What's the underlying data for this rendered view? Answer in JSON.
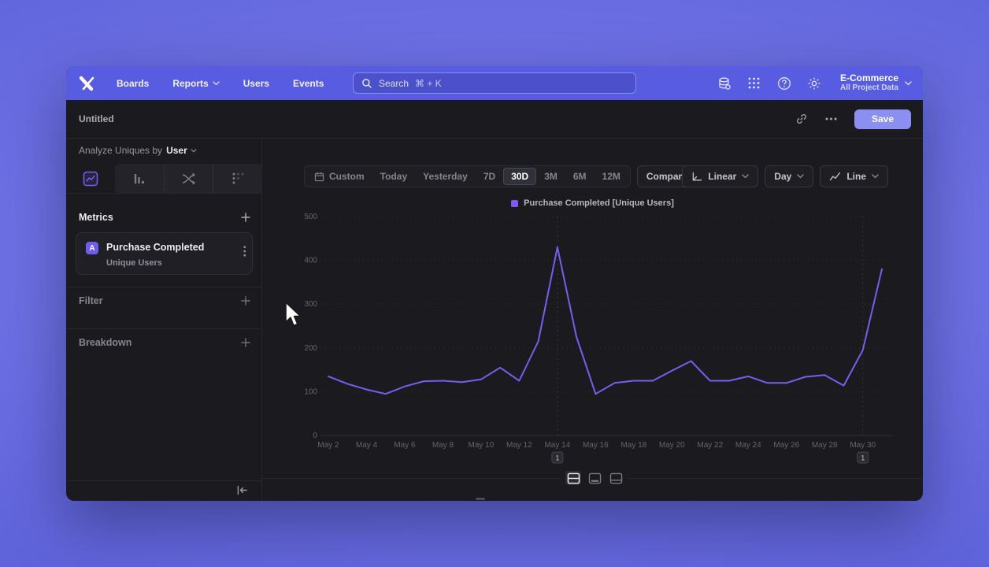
{
  "nav": {
    "brand": "Mixpanel",
    "items": [
      {
        "label": "Boards"
      },
      {
        "label": "Reports",
        "has_chevron": true
      },
      {
        "label": "Users"
      },
      {
        "label": "Events"
      }
    ],
    "search": {
      "label": "Search",
      "shortcut": "⌘ + K"
    },
    "project": {
      "name": "E-Commerce",
      "scope": "All Project Data"
    }
  },
  "titlebar": {
    "title": "Untitled",
    "save_label": "Save"
  },
  "sidebar": {
    "analyze_prefix": "Analyze Uniques by",
    "analyze_entity": "User",
    "metrics_header": "Metrics",
    "metric_card": {
      "badge": "A",
      "event": "Purchase Completed",
      "measure": "Unique Users"
    },
    "filter_label": "Filter",
    "breakdown_label": "Breakdown"
  },
  "toolbar": {
    "ranges": [
      "Custom",
      "Today",
      "Yesterday",
      "7D",
      "30D",
      "3M",
      "6M",
      "12M"
    ],
    "selected_range": "30D",
    "compare_label": "Compare",
    "scale_label": "Linear",
    "interval_label": "Day",
    "chart_type_label": "Line"
  },
  "chart_data": {
    "type": "line",
    "legend": "Purchase Completed [Unique Users]",
    "series_color": "#7a5cf0",
    "ylim": [
      0,
      500
    ],
    "y_ticks": [
      0,
      100,
      200,
      300,
      400,
      500
    ],
    "x": [
      "May 2",
      "May 3",
      "May 4",
      "May 5",
      "May 6",
      "May 7",
      "May 8",
      "May 9",
      "May 10",
      "May 11",
      "May 12",
      "May 13",
      "May 14",
      "May 15",
      "May 16",
      "May 17",
      "May 18",
      "May 19",
      "May 20",
      "May 21",
      "May 22",
      "May 23",
      "May 24",
      "May 25",
      "May 26",
      "May 27",
      "May 28",
      "May 29",
      "May 30",
      "May 31"
    ],
    "values": [
      135,
      118,
      105,
      95,
      112,
      124,
      125,
      122,
      128,
      155,
      125,
      215,
      430,
      225,
      95,
      120,
      125,
      125,
      148,
      170,
      125,
      125,
      135,
      120,
      120,
      134,
      138,
      114,
      195,
      380
    ],
    "x_tick_labels": [
      "May 2",
      "May 4",
      "May 6",
      "May 8",
      "May 10",
      "May 12",
      "May 14",
      "May 16",
      "May 18",
      "May 20",
      "May 22",
      "May 24",
      "May 26",
      "May 28",
      "May 30"
    ],
    "annotations": [
      {
        "label": "1",
        "day": "May 14"
      },
      {
        "label": "1",
        "day": "May 30"
      }
    ],
    "grid": "dashed-horizontal",
    "legend_position": "top-center"
  },
  "colors": {
    "accent": "#7a5cf0",
    "nav_purple": "#575ce0",
    "save_button": "#8b8ff2",
    "window_bg": "#1b1b1f",
    "axis_text": "#63636b"
  },
  "icons": {
    "search": "magnifier",
    "data": "database",
    "apps": "dot-grid-3x3",
    "help": "question-circle",
    "settings": "gear",
    "link": "chain-link",
    "more": "ellipsis",
    "add": "plus",
    "kebab": "vertical-dots",
    "calendar": "calendar",
    "linear_scale": "axes-corner",
    "line_chart": "zigzag",
    "chevron": "chevron-down",
    "collapse": "arrow-to-left-bar",
    "tab_insights": "line-chart-square",
    "tab_funnels": "descending-bars",
    "tab_flows": "crossing-flows",
    "tab_retention": "dot-matrix",
    "layout_rows": "split-rows",
    "layout_panel_top": "panel-top",
    "layout_panel_bottom": "panel-bottom"
  }
}
